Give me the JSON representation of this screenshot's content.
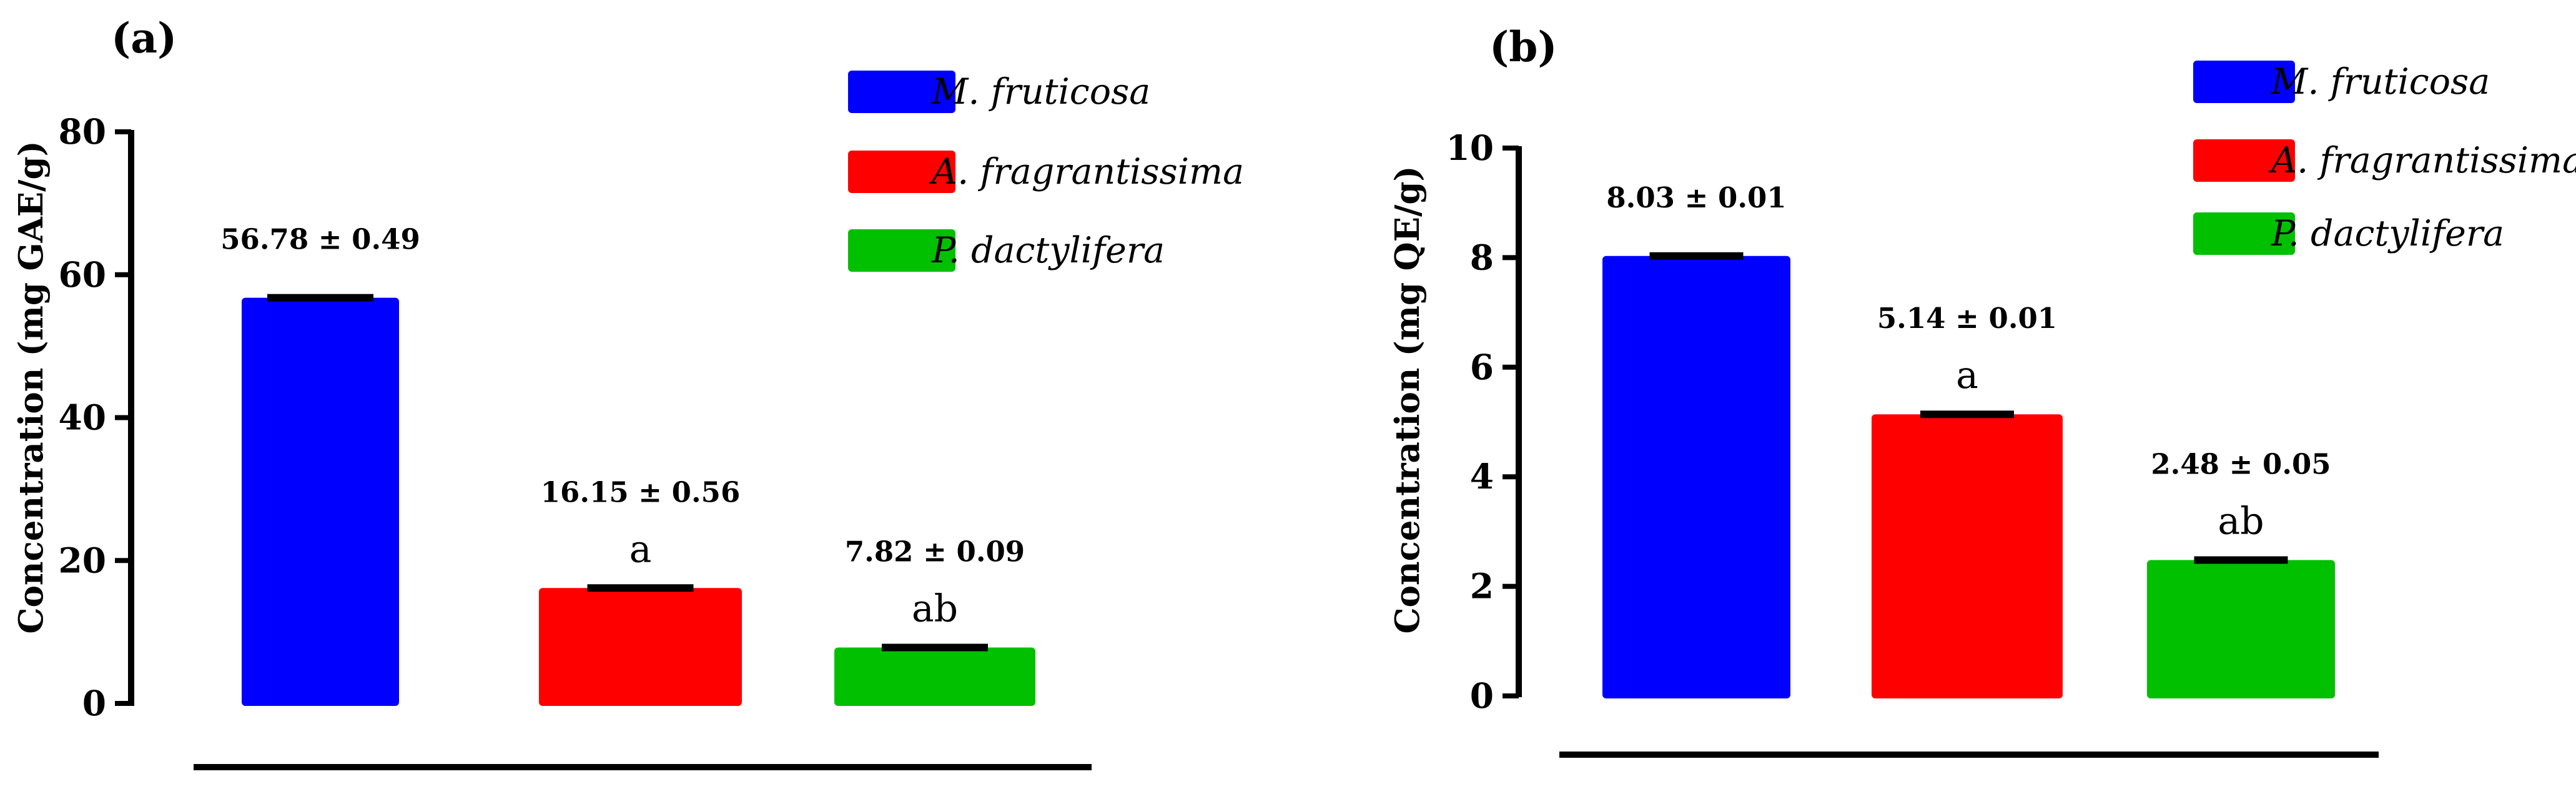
{
  "chart_data": [
    {
      "type": "bar",
      "panel_label": "(a)",
      "ylabel": "Concentration (mg GAE/g)",
      "ylim": [
        0,
        80
      ],
      "yticks": [
        "0",
        "20",
        "40",
        "60",
        "80"
      ],
      "categories": [
        "M. fruticosa",
        "A. fragrantissima",
        "P. dactylifera"
      ],
      "values": [
        56.78,
        16.15,
        7.82
      ],
      "value_labels": [
        "56.78 ± 0.49",
        "16.15 ± 0.56",
        "7.82 ± 0.09"
      ],
      "sig_letters": [
        "",
        "a",
        "ab"
      ],
      "colors": [
        "#0000ff",
        "#ff0000",
        "#00c000"
      ],
      "legend": [
        "M. fruticosa",
        "A. fragrantissima",
        "P. dactylifera"
      ],
      "legend_position": "top-right"
    },
    {
      "type": "bar",
      "panel_label": "(b)",
      "ylabel": "Concentration (mg QE/g)",
      "ylim": [
        0,
        10
      ],
      "yticks": [
        "0",
        "2",
        "4",
        "6",
        "8",
        "10"
      ],
      "categories": [
        "M. fruticosa",
        "A. fragrantissima",
        "P. dactylifera"
      ],
      "values": [
        8.03,
        5.14,
        2.48
      ],
      "value_labels": [
        "8.03 ± 0.01",
        "5.14 ± 0.01",
        "2.48 ± 0.05"
      ],
      "sig_letters": [
        "",
        "a",
        "ab"
      ],
      "colors": [
        "#0000ff",
        "#ff0000",
        "#00c000"
      ],
      "legend": [
        "M. fruticosa",
        "A. fragrantissima",
        "P. dactylifera"
      ],
      "legend_position": "top-right"
    }
  ]
}
